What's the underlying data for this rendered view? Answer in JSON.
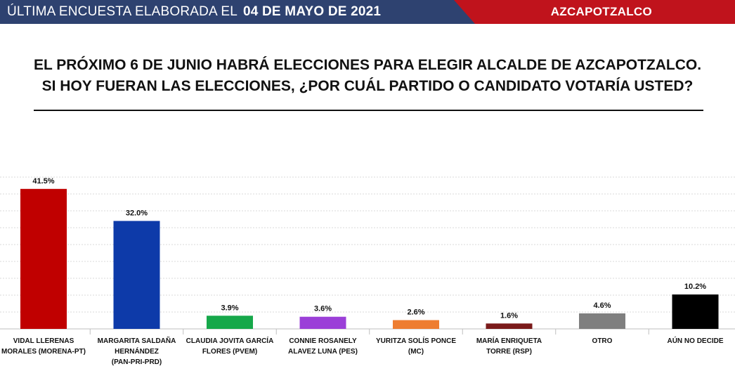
{
  "header": {
    "survey_label": "ÚLTIMA ENCUESTA ELABORADA EL",
    "survey_date": "04 DE MAYO DE 2021",
    "region": "AZCAPOTZALCO"
  },
  "question": {
    "line1": "EL PRÓXIMO 6 DE JUNIO HABRÁ ELECCIONES PARA ELEGIR ALCALDE DE AZCAPOTZALCO.",
    "line2": "SI HOY FUERAN LAS ELECCIONES, ¿POR CUÁL PARTIDO O CANDIDATO VOTARÍA USTED?"
  },
  "colors": {
    "header_blue": "#2e4270",
    "header_red": "#c0131c"
  },
  "chart_data": {
    "type": "bar",
    "categories": [
      [
        "VIDAL LLERENAS",
        "MORALES (MORENA-PT)"
      ],
      [
        "MARGARITA SALDAÑA",
        "HERNÁNDEZ",
        "(PAN-PRI-PRD)"
      ],
      [
        "CLAUDIA JOVITA GARCÍA",
        "FLORES (PVEM)"
      ],
      [
        "CONNIE ROSANELY",
        "ALAVEZ LUNA (PES)"
      ],
      [
        "YURITZA SOLÍS PONCE",
        "(MC)"
      ],
      [
        "MARÍA ENRIQUETA",
        "TORRE (RSP)"
      ],
      [
        "OTRO"
      ],
      [
        "AÚN NO DECIDE"
      ]
    ],
    "values": [
      41.5,
      32.0,
      3.9,
      3.6,
      2.6,
      1.6,
      4.6,
      10.2
    ],
    "data_labels": [
      "41.5%",
      "32.0%",
      "3.9%",
      "3.6%",
      "2.6%",
      "1.6%",
      "4.6%",
      "10.2%"
    ],
    "colors": [
      "#c00000",
      "#0d3aa9",
      "#16a84a",
      "#9b3fd8",
      "#ee7d31",
      "#7a1a1a",
      "#7f7f7f",
      "#000000"
    ],
    "ylim": [
      0,
      45
    ],
    "grid": true,
    "legend": "none"
  }
}
